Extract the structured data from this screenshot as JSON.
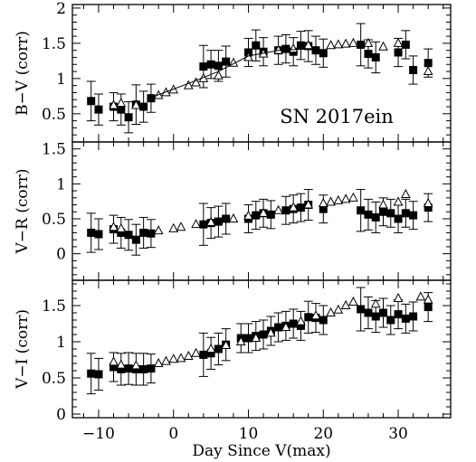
{
  "chart_data": [
    {
      "type": "scatter",
      "ylabel": "B−V (corr)",
      "annotation": "SN 2017ein",
      "xlim": [
        -13.5,
        37
      ],
      "ylim": [
        0.1,
        2.05
      ],
      "yticks": [
        0.5,
        1,
        1.5,
        2
      ],
      "series": [
        {
          "marker": "filled-square",
          "error_bars": true,
          "points": [
            {
              "x": -11,
              "y": 0.68,
              "err": 0.28
            },
            {
              "x": -10,
              "y": 0.56,
              "err": 0.22
            },
            {
              "x": -8,
              "y": 0.6,
              "err": 0.2
            },
            {
              "x": -7,
              "y": 0.56,
              "err": 0.22
            },
            {
              "x": -6,
              "y": 0.45,
              "err": 0.22
            },
            {
              "x": -5,
              "y": 0.63,
              "err": 0.28
            },
            {
              "x": -4,
              "y": 0.6,
              "err": 0.22
            },
            {
              "x": -3,
              "y": 0.72,
              "err": 0.2
            },
            {
              "x": 4,
              "y": 1.17,
              "err": 0.3
            },
            {
              "x": 5,
              "y": 1.2,
              "err": 0.2
            },
            {
              "x": 6,
              "y": 1.18,
              "err": 0.22
            },
            {
              "x": 7,
              "y": 1.24,
              "err": 0.22
            },
            {
              "x": 10,
              "y": 1.37,
              "err": 0.2
            },
            {
              "x": 11,
              "y": 1.47,
              "err": 0.22
            },
            {
              "x": 12,
              "y": 1.38,
              "err": 0.2
            },
            {
              "x": 14,
              "y": 1.4,
              "err": 0.2
            },
            {
              "x": 15,
              "y": 1.42,
              "err": 0.2
            },
            {
              "x": 16,
              "y": 1.38,
              "err": 0.2
            },
            {
              "x": 17,
              "y": 1.47,
              "err": 0.2
            },
            {
              "x": 18,
              "y": 1.46,
              "err": 0.22
            },
            {
              "x": 19,
              "y": 1.4,
              "err": 0.2
            },
            {
              "x": 20,
              "y": 1.36,
              "err": 0.2
            },
            {
              "x": 25,
              "y": 1.48,
              "err": 0.3
            },
            {
              "x": 26,
              "y": 1.35,
              "err": 0.2
            },
            {
              "x": 27,
              "y": 1.3,
              "err": 0.22
            },
            {
              "x": 30,
              "y": 1.37,
              "err": 0.2
            },
            {
              "x": 31,
              "y": 1.48,
              "err": 0.2
            },
            {
              "x": 32,
              "y": 1.12,
              "err": 0.2
            },
            {
              "x": 34,
              "y": 1.22,
              "err": 0.2
            }
          ]
        },
        {
          "marker": "open-triangle",
          "error_bars": false,
          "points": [
            {
              "x": -8,
              "y": 0.62
            },
            {
              "x": -7,
              "y": 0.65
            },
            {
              "x": -5,
              "y": 0.62
            },
            {
              "x": -2,
              "y": 0.76
            },
            {
              "x": -1,
              "y": 0.8
            },
            {
              "x": 0,
              "y": 0.84
            },
            {
              "x": 2,
              "y": 0.9
            },
            {
              "x": 3,
              "y": 0.94
            },
            {
              "x": 4,
              "y": 1.0
            },
            {
              "x": 6,
              "y": 1.04
            },
            {
              "x": 8,
              "y": 1.22
            },
            {
              "x": 10,
              "y": 1.3
            },
            {
              "x": 12,
              "y": 1.35
            },
            {
              "x": 14,
              "y": 1.4
            },
            {
              "x": 16,
              "y": 1.42
            },
            {
              "x": 18,
              "y": 1.47
            },
            {
              "x": 21,
              "y": 1.47
            },
            {
              "x": 22,
              "y": 1.48
            },
            {
              "x": 23,
              "y": 1.49
            },
            {
              "x": 24,
              "y": 1.5
            },
            {
              "x": 26,
              "y": 1.5
            },
            {
              "x": 28,
              "y": 1.45
            },
            {
              "x": 30,
              "y": 1.5
            },
            {
              "x": 34,
              "y": 1.1
            }
          ]
        },
        {
          "marker": "line",
          "error_bars": false,
          "points": [
            {
              "x": -3,
              "y": 0.73
            },
            {
              "x": 2,
              "y": 0.93
            },
            {
              "x": 6,
              "y": 1.1
            },
            {
              "x": 10,
              "y": 1.32
            },
            {
              "x": 14,
              "y": 1.4
            },
            {
              "x": 18,
              "y": 1.42
            },
            {
              "x": 20,
              "y": 1.38
            }
          ]
        }
      ]
    },
    {
      "type": "scatter",
      "ylabel": "V−R (corr)",
      "xlim": [
        -13.5,
        37
      ],
      "ylim": [
        -0.38,
        1.6
      ],
      "yticks": [
        0,
        0.5,
        1,
        1.5
      ],
      "series": [
        {
          "marker": "filled-square",
          "error_bars": true,
          "points": [
            {
              "x": -11,
              "y": 0.3,
              "err": 0.28
            },
            {
              "x": -10,
              "y": 0.28,
              "err": 0.22
            },
            {
              "x": -8,
              "y": 0.35,
              "err": 0.2
            },
            {
              "x": -7,
              "y": 0.3,
              "err": 0.22
            },
            {
              "x": -6,
              "y": 0.27,
              "err": 0.22
            },
            {
              "x": -5,
              "y": 0.2,
              "err": 0.22
            },
            {
              "x": -4,
              "y": 0.3,
              "err": 0.22
            },
            {
              "x": -3,
              "y": 0.29,
              "err": 0.2
            },
            {
              "x": 4,
              "y": 0.42,
              "err": 0.3
            },
            {
              "x": 5,
              "y": 0.44,
              "err": 0.22
            },
            {
              "x": 6,
              "y": 0.46,
              "err": 0.22
            },
            {
              "x": 7,
              "y": 0.5,
              "err": 0.22
            },
            {
              "x": 10,
              "y": 0.5,
              "err": 0.2
            },
            {
              "x": 11,
              "y": 0.55,
              "err": 0.2
            },
            {
              "x": 12,
              "y": 0.58,
              "err": 0.2
            },
            {
              "x": 13,
              "y": 0.56,
              "err": 0.2
            },
            {
              "x": 15,
              "y": 0.62,
              "err": 0.2
            },
            {
              "x": 16,
              "y": 0.64,
              "err": 0.2
            },
            {
              "x": 17,
              "y": 0.66,
              "err": 0.2
            },
            {
              "x": 18,
              "y": 0.7,
              "err": 0.22
            },
            {
              "x": 20,
              "y": 0.64,
              "err": 0.2
            },
            {
              "x": 25,
              "y": 0.62,
              "err": 0.3
            },
            {
              "x": 26,
              "y": 0.56,
              "err": 0.22
            },
            {
              "x": 27,
              "y": 0.52,
              "err": 0.22
            },
            {
              "x": 28,
              "y": 0.6,
              "err": 0.2
            },
            {
              "x": 29,
              "y": 0.58,
              "err": 0.2
            },
            {
              "x": 30,
              "y": 0.5,
              "err": 0.2
            },
            {
              "x": 31,
              "y": 0.58,
              "err": 0.2
            },
            {
              "x": 32,
              "y": 0.55,
              "err": 0.2
            },
            {
              "x": 34,
              "y": 0.66,
              "err": 0.2
            }
          ]
        },
        {
          "marker": "open-triangle",
          "error_bars": false,
          "points": [
            {
              "x": -8,
              "y": 0.38
            },
            {
              "x": -7,
              "y": 0.36
            },
            {
              "x": -2,
              "y": 0.33
            },
            {
              "x": 0,
              "y": 0.36
            },
            {
              "x": 1,
              "y": 0.38
            },
            {
              "x": 3,
              "y": 0.42
            },
            {
              "x": 5,
              "y": 0.45
            },
            {
              "x": 8,
              "y": 0.5
            },
            {
              "x": 10,
              "y": 0.54
            },
            {
              "x": 12,
              "y": 0.58
            },
            {
              "x": 14,
              "y": 0.62
            },
            {
              "x": 16,
              "y": 0.66
            },
            {
              "x": 18,
              "y": 0.7
            },
            {
              "x": 20,
              "y": 0.72
            },
            {
              "x": 21,
              "y": 0.74
            },
            {
              "x": 22,
              "y": 0.76
            },
            {
              "x": 23,
              "y": 0.78
            },
            {
              "x": 24,
              "y": 0.8
            },
            {
              "x": 28,
              "y": 0.7
            },
            {
              "x": 30,
              "y": 0.74
            },
            {
              "x": 31,
              "y": 0.85
            },
            {
              "x": 34,
              "y": 0.72
            }
          ]
        }
      ]
    },
    {
      "type": "scatter",
      "ylabel": "V−I (corr)",
      "xlabel": "Day Since V(max)",
      "xlim": [
        -13.5,
        37
      ],
      "ylim": [
        -0.05,
        1.85
      ],
      "yticks": [
        0,
        0.5,
        1,
        1.5
      ],
      "xticks": [
        -10,
        0,
        10,
        20,
        30
      ],
      "series": [
        {
          "marker": "filled-square",
          "error_bars": true,
          "points": [
            {
              "x": -11,
              "y": 0.56,
              "err": 0.28
            },
            {
              "x": -10,
              "y": 0.55,
              "err": 0.22
            },
            {
              "x": -8,
              "y": 0.65,
              "err": 0.2
            },
            {
              "x": -7,
              "y": 0.62,
              "err": 0.22
            },
            {
              "x": -6,
              "y": 0.63,
              "err": 0.22
            },
            {
              "x": -5,
              "y": 0.62,
              "err": 0.22
            },
            {
              "x": -4,
              "y": 0.62,
              "err": 0.22
            },
            {
              "x": -3,
              "y": 0.63,
              "err": 0.2
            },
            {
              "x": 4,
              "y": 0.82,
              "err": 0.3
            },
            {
              "x": 5,
              "y": 0.84,
              "err": 0.22
            },
            {
              "x": 6,
              "y": 0.9,
              "err": 0.22
            },
            {
              "x": 7,
              "y": 0.96,
              "err": 0.22
            },
            {
              "x": 9,
              "y": 1.05,
              "err": 0.2
            },
            {
              "x": 10,
              "y": 1.05,
              "err": 0.2
            },
            {
              "x": 11,
              "y": 1.08,
              "err": 0.2
            },
            {
              "x": 12,
              "y": 1.1,
              "err": 0.2
            },
            {
              "x": 13,
              "y": 1.15,
              "err": 0.2
            },
            {
              "x": 14,
              "y": 1.2,
              "err": 0.2
            },
            {
              "x": 15,
              "y": 1.22,
              "err": 0.2
            },
            {
              "x": 16,
              "y": 1.25,
              "err": 0.2
            },
            {
              "x": 17,
              "y": 1.22,
              "err": 0.2
            },
            {
              "x": 18,
              "y": 1.34,
              "err": 0.22
            },
            {
              "x": 19,
              "y": 1.33,
              "err": 0.2
            },
            {
              "x": 20,
              "y": 1.3,
              "err": 0.2
            },
            {
              "x": 25,
              "y": 1.45,
              "err": 0.3
            },
            {
              "x": 26,
              "y": 1.4,
              "err": 0.22
            },
            {
              "x": 27,
              "y": 1.35,
              "err": 0.22
            },
            {
              "x": 28,
              "y": 1.4,
              "err": 0.2
            },
            {
              "x": 29,
              "y": 1.3,
              "err": 0.2
            },
            {
              "x": 30,
              "y": 1.38,
              "err": 0.2
            },
            {
              "x": 31,
              "y": 1.32,
              "err": 0.2
            },
            {
              "x": 32,
              "y": 1.35,
              "err": 0.2
            },
            {
              "x": 34,
              "y": 1.48,
              "err": 0.2
            }
          ]
        },
        {
          "marker": "open-triangle",
          "error_bars": false,
          "points": [
            {
              "x": -8,
              "y": 0.72
            },
            {
              "x": -7,
              "y": 0.68
            },
            {
              "x": -5,
              "y": 0.67
            },
            {
              "x": -2,
              "y": 0.7
            },
            {
              "x": -1,
              "y": 0.73
            },
            {
              "x": 0,
              "y": 0.76
            },
            {
              "x": 1,
              "y": 0.77
            },
            {
              "x": 2,
              "y": 0.8
            },
            {
              "x": 3,
              "y": 0.84
            },
            {
              "x": 5,
              "y": 0.9
            },
            {
              "x": 7,
              "y": 0.95
            },
            {
              "x": 9,
              "y": 1.0
            },
            {
              "x": 11,
              "y": 1.05
            },
            {
              "x": 13,
              "y": 1.12
            },
            {
              "x": 15,
              "y": 1.2
            },
            {
              "x": 17,
              "y": 1.28
            },
            {
              "x": 19,
              "y": 1.36
            },
            {
              "x": 21,
              "y": 1.4
            },
            {
              "x": 22,
              "y": 1.44
            },
            {
              "x": 23,
              "y": 1.5
            },
            {
              "x": 24,
              "y": 1.55
            },
            {
              "x": 27,
              "y": 1.52
            },
            {
              "x": 30,
              "y": 1.6
            },
            {
              "x": 33,
              "y": 1.62
            },
            {
              "x": 34,
              "y": 1.58
            }
          ]
        }
      ]
    }
  ]
}
